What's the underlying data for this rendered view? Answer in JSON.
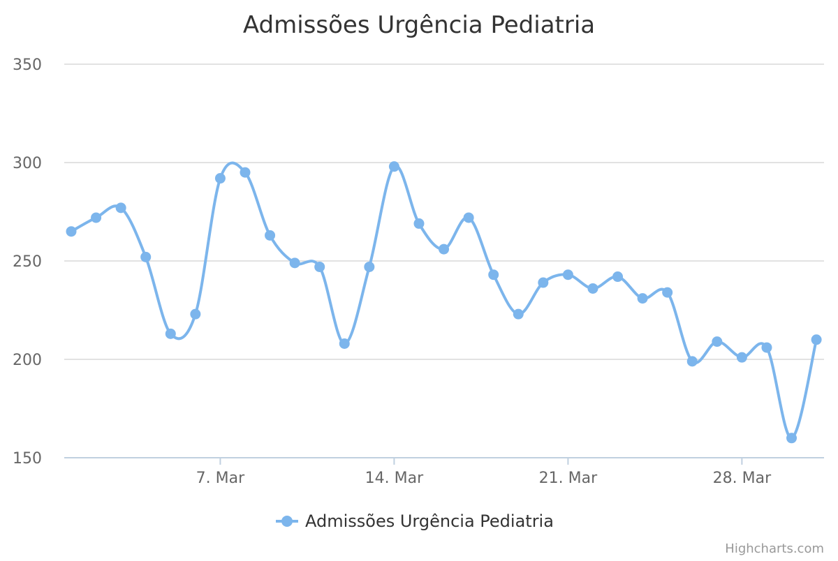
{
  "chart_data": {
    "type": "line",
    "title": "Admissões Urgência Pediatria",
    "xlabel": "",
    "ylabel": "",
    "ylim": [
      150,
      350
    ],
    "yticks": [
      "150",
      "200",
      "250",
      "300",
      "350"
    ],
    "x_start_day": 1,
    "x_ticks": [
      {
        "day": 7,
        "label": "7. Mar"
      },
      {
        "day": 14,
        "label": "14. Mar"
      },
      {
        "day": 21,
        "label": "21. Mar"
      },
      {
        "day": 28,
        "label": "28. Mar"
      }
    ],
    "series": [
      {
        "name": "Admissões Urgência Pediatria",
        "color": "#7cb5ec",
        "smooth": true,
        "values": [
          265,
          272,
          277,
          252,
          213,
          223,
          292,
          295,
          263,
          249,
          247,
          208,
          247,
          298,
          269,
          256,
          272,
          243,
          223,
          239,
          243,
          236,
          242,
          231,
          234,
          199,
          209,
          201,
          206,
          160,
          210
        ]
      }
    ],
    "grid": true,
    "legend": "bottom-center",
    "credits": "Highcharts.com"
  }
}
